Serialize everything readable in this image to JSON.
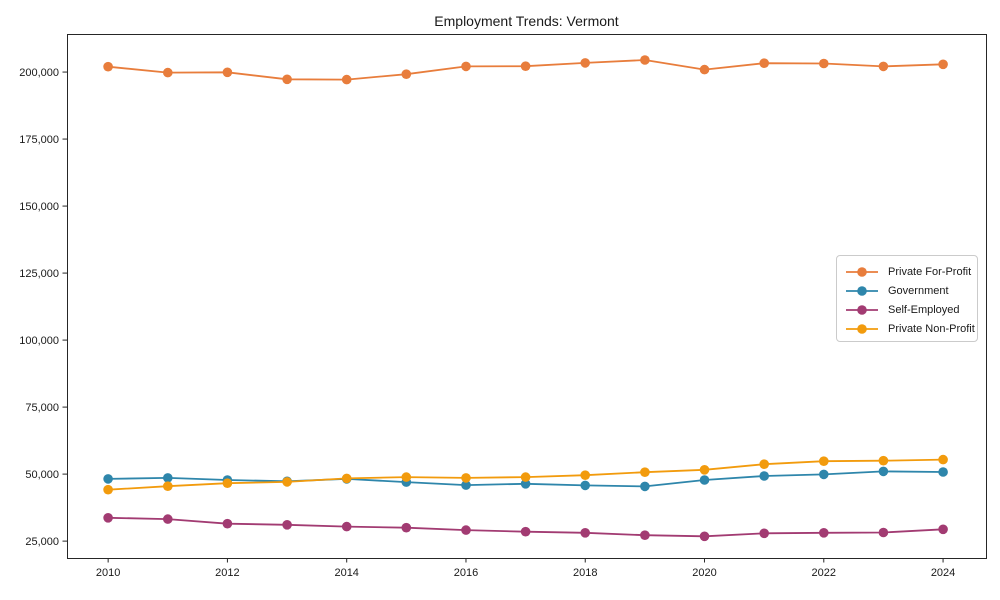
{
  "chart_data": {
    "type": "line",
    "title": "Employment Trends: Vermont",
    "xlabel": "",
    "ylabel": "",
    "x": [
      2010,
      2011,
      2012,
      2013,
      2014,
      2015,
      2016,
      2017,
      2018,
      2019,
      2020,
      2021,
      2022,
      2023,
      2024
    ],
    "series": [
      {
        "name": "Private For-Profit",
        "color": "#e87d3c",
        "values": [
          202000,
          199800,
          199900,
          197300,
          197200,
          199200,
          202100,
          202200,
          203400,
          204500,
          200900,
          203300,
          203200,
          202100,
          202900
        ]
      },
      {
        "name": "Government",
        "color": "#2e86ab",
        "values": [
          48200,
          48600,
          47800,
          47300,
          48200,
          47000,
          45900,
          46400,
          45800,
          45400,
          47800,
          49300,
          49900,
          51000,
          50800
        ]
      },
      {
        "name": "Self-Employed",
        "color": "#a23b72",
        "values": [
          33700,
          33200,
          31500,
          31100,
          30400,
          30000,
          29100,
          28500,
          28100,
          27200,
          26800,
          27900,
          28100,
          28200,
          29400
        ]
      },
      {
        "name": "Private Non-Profit",
        "color": "#f29b0d",
        "values": [
          44200,
          45500,
          46600,
          47100,
          48400,
          48900,
          48600,
          48900,
          49600,
          50700,
          51600,
          53700,
          54800,
          55000,
          55400
        ]
      }
    ],
    "xticks": [
      2010,
      2012,
      2014,
      2016,
      2018,
      2020,
      2022,
      2024
    ],
    "xtick_labels": [
      "2010",
      "2012",
      "2014",
      "2016",
      "2018",
      "2020",
      "2022",
      "2024"
    ],
    "yticks": [
      25000,
      50000,
      75000,
      100000,
      125000,
      150000,
      175000,
      200000
    ],
    "ytick_labels": [
      "25,000",
      "50,000",
      "75,000",
      "100,000",
      "125,000",
      "150,000",
      "175,000",
      "200,000"
    ],
    "xlim": [
      2009.31,
      2024.72
    ],
    "ylim": [
      18700,
      214200
    ],
    "grid": false,
    "legend_position": "center-right",
    "axis_color": "#262626",
    "text_color": "#1a1a1a",
    "marker": "circle",
    "marker_radius": 4.8,
    "line_width": 1.8
  }
}
